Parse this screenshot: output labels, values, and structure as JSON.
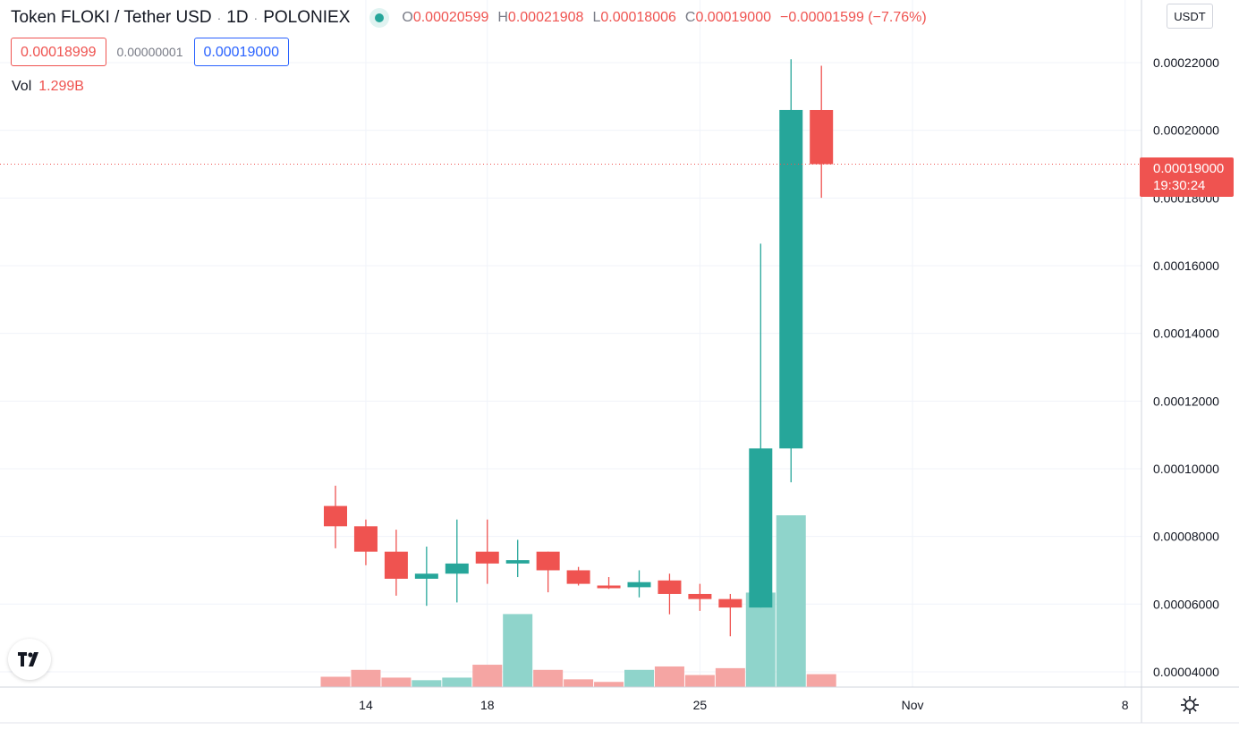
{
  "header": {
    "title": "Token FLOKI / Tether USD",
    "interval": "1D",
    "exchange": "POLONIEX",
    "ohlc": {
      "o_key": "O",
      "o_val": "0.00020599",
      "h_key": "H",
      "h_val": "0.00021908",
      "l_key": "L",
      "l_val": "0.00018006",
      "c_key": "C",
      "c_val": "0.00019000",
      "change": "−0.00001599 (−7.76%)"
    }
  },
  "quote": {
    "bid": "0.00018999",
    "spread": "0.00000001",
    "ask": "0.00019000"
  },
  "volume": {
    "label": "Vol",
    "value": "1.299B"
  },
  "currency": "USDT",
  "last_price": {
    "price": "0.00019000",
    "countdown": "19:30:24"
  },
  "icons": {
    "logo": "tradingview-logo-icon",
    "settings": "gear-icon"
  },
  "colors": {
    "up": "#26a69a",
    "down": "#ef5350",
    "vol_up": "#8fd4cb",
    "vol_down": "#f5a5a3"
  },
  "chart_data": {
    "type": "candlestick",
    "interval": "1D",
    "candles": [
      {
        "o": 8.9e-05,
        "h": 9.5e-05,
        "l": 7.65e-05,
        "c": 8.3e-05,
        "vol": 12
      },
      {
        "o": 8.3e-05,
        "h": 8.5e-05,
        "l": 7.15e-05,
        "c": 7.55e-05,
        "vol": 20
      },
      {
        "o": 7.55e-05,
        "h": 8.2e-05,
        "l": 6.25e-05,
        "c": 6.75e-05,
        "vol": 11
      },
      {
        "o": 6.75e-05,
        "h": 7.7e-05,
        "l": 5.95e-05,
        "c": 6.9e-05,
        "vol": 8
      },
      {
        "o": 6.9e-05,
        "h": 8.5e-05,
        "l": 6.05e-05,
        "c": 7.2e-05,
        "vol": 11
      },
      {
        "o": 7.55e-05,
        "h": 8.5e-05,
        "l": 6.6e-05,
        "c": 7.2e-05,
        "vol": 26
      },
      {
        "o": 7.2e-05,
        "h": 7.9e-05,
        "l": 6.8e-05,
        "c": 7.3e-05,
        "vol": 85
      },
      {
        "o": 7.55e-05,
        "h": 7.55e-05,
        "l": 6.35e-05,
        "c": 7e-05,
        "vol": 20
      },
      {
        "o": 7e-05,
        "h": 7.1e-05,
        "l": 6.55e-05,
        "c": 6.6e-05,
        "vol": 9
      },
      {
        "o": 6.55e-05,
        "h": 6.8e-05,
        "l": 6.45e-05,
        "c": 6.5e-05,
        "vol": 6
      },
      {
        "o": 6.5e-05,
        "h": 7e-05,
        "l": 6.2e-05,
        "c": 6.65e-05,
        "vol": 20
      },
      {
        "o": 6.7e-05,
        "h": 6.9e-05,
        "l": 5.7e-05,
        "c": 6.3e-05,
        "vol": 24
      },
      {
        "o": 6.3e-05,
        "h": 6.6e-05,
        "l": 5.8e-05,
        "c": 6.15e-05,
        "vol": 14
      },
      {
        "o": 6.15e-05,
        "h": 6.3e-05,
        "l": 5.05e-05,
        "c": 5.9e-05,
        "vol": 22
      },
      {
        "o": 5.9e-05,
        "h": 0.0001665,
        "l": 5.9e-05,
        "c": 0.000106,
        "vol": 110
      },
      {
        "o": 0.000106,
        "h": 0.000221,
        "l": 9.6e-05,
        "c": 0.000206,
        "vol": 200
      },
      {
        "o": 0.00020599,
        "h": 0.00021908,
        "l": 0.00018006,
        "c": 0.00019,
        "vol": 15
      }
    ],
    "x_ticks": [
      "14",
      "18",
      "25",
      "Nov",
      "8"
    ],
    "y_ticks": [
      "0.00004000",
      "0.00006000",
      "0.00008000",
      "0.00010000",
      "0.00012000",
      "0.00014000",
      "0.00016000",
      "0.00018000",
      "0.00020000",
      "0.00022000"
    ],
    "ylim": [
      3.55e-05,
      0.0002385
    ],
    "last_price_line": 0.00019,
    "grid": true
  }
}
